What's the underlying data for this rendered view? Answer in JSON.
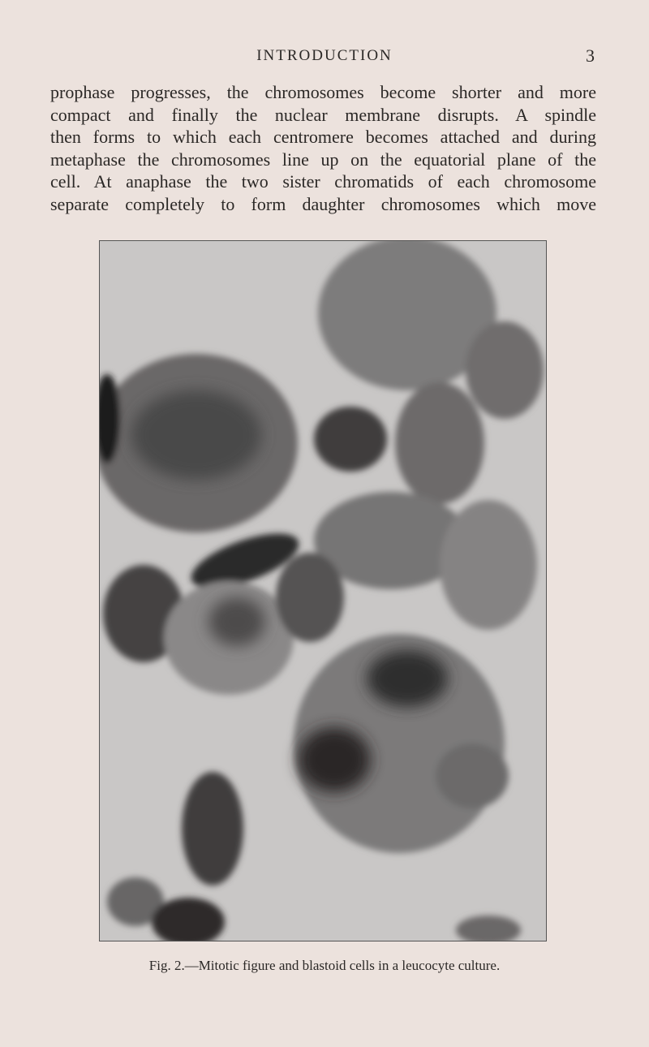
{
  "header": {
    "title": "INTRODUCTION",
    "page_number": "3"
  },
  "body": {
    "lines": [
      "prophase progresses, the chromosomes become shorter and more",
      "compact and finally the nuclear membrane disrupts. A spindle",
      "then forms to which each centromere becomes attached and during",
      "metaphase the chromosomes line up on the equatorial plane of the",
      "cell. At anaphase the two sister chromatids of each chromosome",
      "separate completely to form daughter chromosomes which move"
    ]
  },
  "figure": {
    "caption": "Fig. 2.—Mitotic figure and blastoid cells in a leucocyte culture."
  }
}
